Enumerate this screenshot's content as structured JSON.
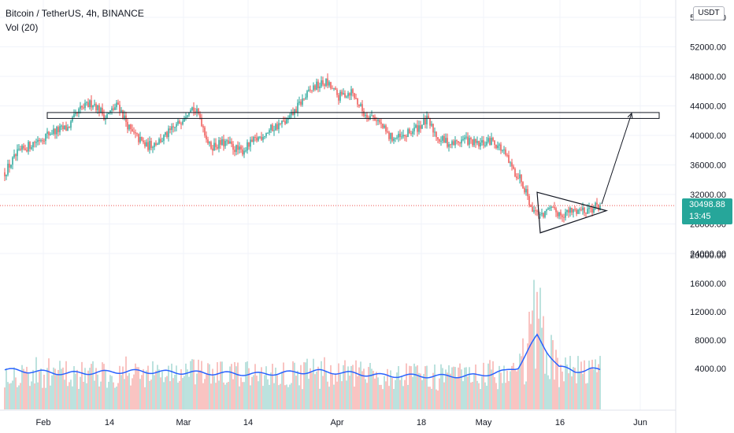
{
  "header": {
    "title": "Bitcoin / TetherUS, 4h, BINANCE",
    "indicator": "Vol (20)"
  },
  "price_scale": {
    "unit": "USDT",
    "current_price": "30498.88",
    "countdown": "13:45"
  },
  "colors": {
    "up": "#26a69a",
    "down": "#ef5350",
    "volume_ma": "#2962ff",
    "current_price_line": "#ef5350"
  },
  "chart_data": {
    "type": "candlestick",
    "title": "Bitcoin / TetherUS, 4h, BINANCE",
    "x_ticks": [
      "Feb",
      "14",
      "Mar",
      "14",
      "Apr",
      "18",
      "May",
      "16",
      "Jun"
    ],
    "price_ticks": [
      "24000.00",
      "28000.00",
      "32000.00",
      "36000.00",
      "40000.00",
      "44000.00",
      "48000.00",
      "52000.00",
      "56000.00"
    ],
    "volume_ticks": [
      "4000.00",
      "8000.00",
      "12000.00",
      "16000.00",
      "20000.00"
    ],
    "ylim_price": [
      22000,
      58000
    ],
    "ylim_volume": [
      0,
      20000
    ],
    "price_path": [
      {
        "t": 0,
        "p": 35000
      },
      {
        "t": 8,
        "p": 37500
      },
      {
        "t": 18,
        "p": 39000
      },
      {
        "t": 30,
        "p": 40500
      },
      {
        "t": 40,
        "p": 41000
      },
      {
        "t": 48,
        "p": 43500
      },
      {
        "t": 56,
        "p": 44500
      },
      {
        "t": 64,
        "p": 42500
      },
      {
        "t": 72,
        "p": 44200
      },
      {
        "t": 80,
        "p": 40500
      },
      {
        "t": 90,
        "p": 38500
      },
      {
        "t": 100,
        "p": 39500
      },
      {
        "t": 110,
        "p": 41500
      },
      {
        "t": 118,
        "p": 44000
      },
      {
        "t": 124,
        "p": 42500
      },
      {
        "t": 130,
        "p": 38500
      },
      {
        "t": 140,
        "p": 39000
      },
      {
        "t": 150,
        "p": 37800
      },
      {
        "t": 160,
        "p": 39500
      },
      {
        "t": 170,
        "p": 41000
      },
      {
        "t": 180,
        "p": 42000
      },
      {
        "t": 188,
        "p": 44500
      },
      {
        "t": 196,
        "p": 46500
      },
      {
        "t": 204,
        "p": 47200
      },
      {
        "t": 212,
        "p": 45200
      },
      {
        "t": 220,
        "p": 46000
      },
      {
        "t": 228,
        "p": 43000
      },
      {
        "t": 236,
        "p": 42300
      },
      {
        "t": 244,
        "p": 39800
      },
      {
        "t": 252,
        "p": 39600
      },
      {
        "t": 260,
        "p": 40800
      },
      {
        "t": 268,
        "p": 42000
      },
      {
        "t": 276,
        "p": 39500
      },
      {
        "t": 284,
        "p": 38800
      },
      {
        "t": 292,
        "p": 39500
      },
      {
        "t": 300,
        "p": 38700
      },
      {
        "t": 310,
        "p": 39300
      },
      {
        "t": 316,
        "p": 38000
      },
      {
        "t": 322,
        "p": 35500
      },
      {
        "t": 328,
        "p": 34000
      },
      {
        "t": 334,
        "p": 30500
      },
      {
        "t": 340,
        "p": 29200
      },
      {
        "t": 346,
        "p": 29800
      },
      {
        "t": 354,
        "p": 29400
      },
      {
        "t": 364,
        "p": 29900
      },
      {
        "t": 372,
        "p": 30100
      },
      {
        "t": 378,
        "p": 30499
      }
    ],
    "volume_profile": [
      {
        "t": 0,
        "v": 3800
      },
      {
        "t": 40,
        "v": 3300
      },
      {
        "t": 80,
        "v": 3600
      },
      {
        "t": 120,
        "v": 3400
      },
      {
        "t": 160,
        "v": 3200
      },
      {
        "t": 200,
        "v": 3600
      },
      {
        "t": 240,
        "v": 3000
      },
      {
        "t": 280,
        "v": 2900
      },
      {
        "t": 300,
        "v": 3000
      },
      {
        "t": 318,
        "v": 3600
      },
      {
        "t": 326,
        "v": 4200
      },
      {
        "t": 334,
        "v": 7200
      },
      {
        "t": 338,
        "v": 8600
      },
      {
        "t": 344,
        "v": 6500
      },
      {
        "t": 352,
        "v": 4200
      },
      {
        "t": 362,
        "v": 3600
      },
      {
        "t": 372,
        "v": 3900
      },
      {
        "t": 378,
        "v": 3700
      }
    ],
    "annotations": {
      "resistance_zone": [
        42300,
        43100
      ],
      "triangle_upper_start": {
        "t": 338,
        "p": 32300
      },
      "triangle_lower_start": {
        "t": 340,
        "p": 26800
      },
      "triangle_apex": {
        "t": 382,
        "p": 29800
      },
      "projection_breakout": {
        "t": 379,
        "p": 30700
      },
      "projection_target": {
        "t": 398,
        "p": 43000
      }
    }
  }
}
